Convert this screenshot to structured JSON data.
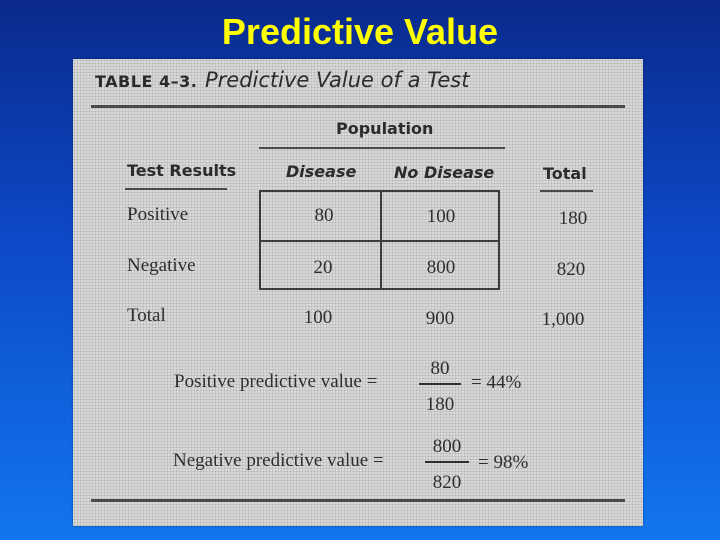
{
  "slide": {
    "title": "Predictive Value"
  },
  "table": {
    "label": "TABLE 4–3.",
    "title": "Predictive Value of a Test",
    "group_header": "Population",
    "columns": {
      "test_results": "Test Results",
      "disease": "Disease",
      "no_disease": "No Disease",
      "total": "Total"
    },
    "rows": [
      {
        "label": "Positive",
        "disease": "80",
        "no_disease": "100",
        "total": "180"
      },
      {
        "label": "Negative",
        "disease": "20",
        "no_disease": "800",
        "total": "820"
      },
      {
        "label": "Total",
        "disease": "100",
        "no_disease": "900",
        "total": "1,000"
      }
    ]
  },
  "formulas": {
    "ppv": {
      "label": "Positive predictive value =",
      "numerator": "80",
      "denominator": "180",
      "result": "= 44%"
    },
    "npv": {
      "label": "Negative predictive value =",
      "numerator": "800",
      "denominator": "820",
      "result": "= 98%"
    }
  },
  "colors": {
    "background": "#0d49c9",
    "title": "#ffff00",
    "page": "#d9d9d9"
  }
}
